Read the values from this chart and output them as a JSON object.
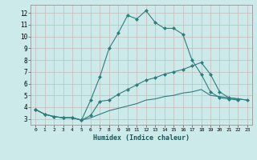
{
  "xlabel": "Humidex (Indice chaleur)",
  "background_color": "#cdeaea",
  "grid_color": "#b8d8d8",
  "line_color": "#2e7d7d",
  "xlim": [
    -0.5,
    23.5
  ],
  "ylim": [
    2.5,
    12.7
  ],
  "xticks": [
    0,
    1,
    2,
    3,
    4,
    5,
    6,
    7,
    8,
    9,
    10,
    11,
    12,
    13,
    14,
    15,
    16,
    17,
    18,
    19,
    20,
    21,
    22,
    23
  ],
  "yticks": [
    3,
    4,
    5,
    6,
    7,
    8,
    9,
    10,
    11,
    12
  ],
  "line1_x": [
    0,
    1,
    2,
    3,
    4,
    5,
    6,
    7,
    8,
    9,
    10,
    11,
    12,
    13,
    14,
    15,
    16,
    17,
    18,
    19,
    20,
    21,
    22
  ],
  "line1_y": [
    3.8,
    3.4,
    3.2,
    3.1,
    3.1,
    2.9,
    4.6,
    6.6,
    9.0,
    10.3,
    11.8,
    11.5,
    12.2,
    11.2,
    10.7,
    10.7,
    10.2,
    8.0,
    6.8,
    5.3,
    4.8,
    4.7,
    4.6
  ],
  "line2_x": [
    0,
    1,
    2,
    3,
    4,
    5,
    6,
    7,
    8,
    9,
    10,
    11,
    12,
    13,
    14,
    15,
    16,
    17,
    18,
    19,
    20,
    21,
    22,
    23
  ],
  "line2_y": [
    3.8,
    3.4,
    3.2,
    3.1,
    3.1,
    2.9,
    3.3,
    4.5,
    4.6,
    5.1,
    5.5,
    5.9,
    6.3,
    6.5,
    6.8,
    7.0,
    7.2,
    7.5,
    7.8,
    6.8,
    5.3,
    4.8,
    4.7,
    4.6
  ],
  "line3_x": [
    0,
    1,
    2,
    3,
    4,
    5,
    6,
    7,
    8,
    9,
    10,
    11,
    12,
    13,
    14,
    15,
    16,
    17,
    18,
    19,
    20,
    21,
    22,
    23
  ],
  "line3_y": [
    3.8,
    3.4,
    3.2,
    3.1,
    3.1,
    2.9,
    3.1,
    3.4,
    3.7,
    3.9,
    4.1,
    4.3,
    4.6,
    4.7,
    4.9,
    5.0,
    5.2,
    5.3,
    5.5,
    5.0,
    4.9,
    4.8,
    4.7,
    4.6
  ]
}
